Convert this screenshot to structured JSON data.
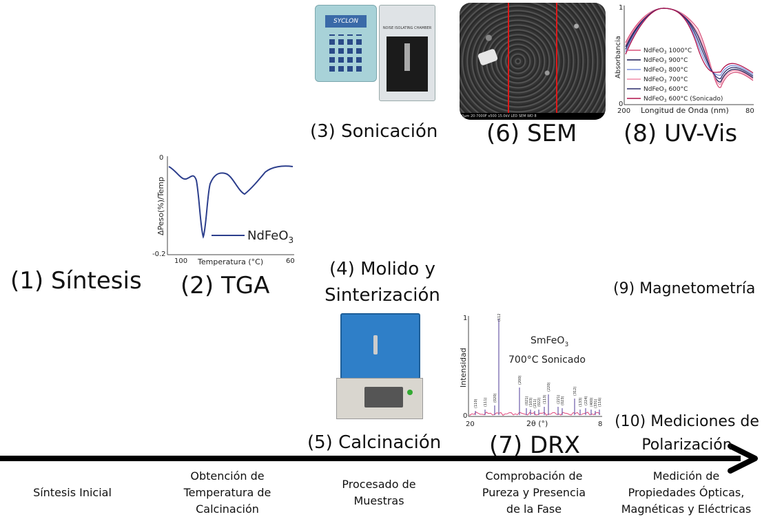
{
  "steps": {
    "s1": "(1) Síntesis",
    "s2": "(2) TGA",
    "s3": "(3) Sonicación",
    "s4_line1": "(4) Molido y",
    "s4_line2": "Sinterización",
    "s5": "(5) Calcinación",
    "s6": "(6) SEM",
    "s7": "(7) DRX",
    "s8": "(8) UV-Vis",
    "s9": "(9) Magnetometría",
    "s10_line1": "(10) Mediciones de",
    "s10_line2": "Polarización"
  },
  "timeline_labels": {
    "l1": "Síntesis Inicial",
    "l2_line1": "Obtención de",
    "l2_line2": "Temperatura de",
    "l2_line3": "Calcinación",
    "l3_line1": "Procesado de",
    "l3_line2": "Muestras",
    "l4_line1": "Comprobación de",
    "l4_line2": "Pureza y Presencia",
    "l4_line3": "de la Fase",
    "l5_line1": "Medición de",
    "l5_line2": "Propiedades Ópticas,",
    "l5_line3": "Magnéticas y Eléctricas"
  },
  "tga": {
    "ylabel": "ΔPeso(%)/Temp",
    "xlabel": "Temperatura (°C)",
    "y_top": "0",
    "y_bottom": "-0.2",
    "x_left": "100",
    "x_right": "60",
    "legend": "NdFeO",
    "legend_sub": "3"
  },
  "uvvis": {
    "ylabel": "Absorbancia",
    "xlabel": "Longitud de Onda (nm)",
    "y_top": "1",
    "y_bottom": "0",
    "x_left": "200",
    "x_right": "80",
    "legend": [
      {
        "text": "NdFeO",
        "sub": "3",
        "suffix": " 1000°C",
        "color": "#d8507a"
      },
      {
        "text": "NdFeO",
        "sub": "3",
        "suffix": " 900°C",
        "color": "#1a1a55"
      },
      {
        "text": "NdFeO",
        "sub": "3",
        "suffix": " 800°C",
        "color": "#7a8ed8"
      },
      {
        "text": "NdFeO",
        "sub": "3",
        "suffix": " 700°C",
        "color": "#f08aa8"
      },
      {
        "text": "NdFeO",
        "sub": "3",
        "suffix": " 600°C",
        "color": "#2a2a6a"
      },
      {
        "text": "NdFeO",
        "sub": "3",
        "suffix": " 600°C (Sonicado)",
        "color": "#b0104a"
      }
    ]
  },
  "drx": {
    "ylabel": "Intensidad",
    "xlabel": "2θ (°)",
    "y_top": "1",
    "y_bottom": "0",
    "x_left": "20",
    "x_right": "8",
    "title_line1": "SmFeO",
    "title_sub": "3",
    "title_line2": "700°C Sonicado",
    "peaks": [
      "(110)",
      "(111)",
      "(020)",
      "(112)",
      "(200)",
      "(021)",
      "(103)",
      "(211)",
      "(022)",
      "(113)",
      "(220)",
      "(221)",
      "(023)",
      "(312)",
      "(133)",
      "(224)",
      "(400)",
      "(331)",
      "(116)"
    ]
  },
  "sonicator": {
    "brand": "SYCLON",
    "chamber": "NOISE ISOLATING CHAMBER"
  },
  "sem": {
    "bar_text": "10μm    20-7000F    x500    15.0kV LED    SEM    WD 8"
  }
}
